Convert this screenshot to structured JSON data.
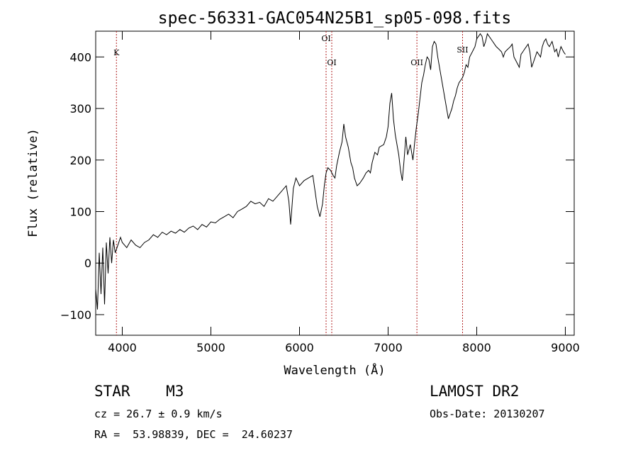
{
  "chart_data": {
    "type": "line",
    "title": "spec-56331-GAC054N25B1_sp05-098.fits",
    "xlabel": "Wavelength (Å)",
    "ylabel": "Flux (relative)",
    "xlim": [
      3700,
      9100
    ],
    "ylim": [
      -140,
      450
    ],
    "xticks": [
      4000,
      5000,
      6000,
      7000,
      8000,
      9000
    ],
    "yticks": [
      -100,
      0,
      100,
      200,
      300,
      400
    ],
    "grid": false,
    "series": [
      {
        "x": [
          3700,
          3720,
          3740,
          3760,
          3780,
          3800,
          3820,
          3840,
          3860,
          3880,
          3900,
          3920,
          3950,
          3980,
          4000,
          4050,
          4100,
          4150,
          4200,
          4250,
          4300,
          4350,
          4400,
          4450,
          4500,
          4550,
          4600,
          4650,
          4700,
          4750,
          4800,
          4850,
          4900,
          4950,
          5000,
          5050,
          5100,
          5150,
          5200,
          5250,
          5300,
          5350,
          5400,
          5450,
          5500,
          5550,
          5600,
          5650,
          5700,
          5750,
          5800,
          5850,
          5880,
          5900,
          5930,
          5960,
          6000,
          6050,
          6100,
          6150,
          6200,
          6230,
          6260,
          6280,
          6300,
          6320,
          6350,
          6380,
          6400,
          6420,
          6450,
          6480,
          6500,
          6520,
          6550,
          6580,
          6600,
          6620,
          6650,
          6680,
          6700,
          6720,
          6750,
          6780,
          6800,
          6820,
          6850,
          6880,
          6900,
          6950,
          6980,
          7000,
          7020,
          7040,
          7060,
          7080,
          7100,
          7120,
          7140,
          7160,
          7180,
          7200,
          7220,
          7250,
          7280,
          7300,
          7320,
          7340,
          7360,
          7380,
          7400,
          7420,
          7440,
          7460,
          7480,
          7500,
          7520,
          7540,
          7560,
          7580,
          7600,
          7620,
          7640,
          7660,
          7680,
          7700,
          7720,
          7740,
          7760,
          7780,
          7800,
          7820,
          7840,
          7860,
          7880,
          7900,
          7920,
          7950,
          7980,
          8000,
          8020,
          8040,
          8060,
          8080,
          8100,
          8120,
          8140,
          8160,
          8180,
          8200,
          8220,
          8250,
          8280,
          8300,
          8320,
          8350,
          8380,
          8400,
          8420,
          8450,
          8480,
          8500,
          8520,
          8540,
          8560,
          8580,
          8600,
          8620,
          8650,
          8680,
          8700,
          8720,
          8740,
          8760,
          8780,
          8800,
          8820,
          8850,
          8880,
          8900,
          8920,
          8950,
          8980,
          9000
        ],
        "y": [
          -50,
          -90,
          20,
          -60,
          30,
          -80,
          40,
          -20,
          50,
          0,
          45,
          20,
          35,
          50,
          40,
          30,
          45,
          35,
          30,
          40,
          45,
          55,
          50,
          60,
          55,
          62,
          58,
          65,
          60,
          68,
          72,
          65,
          75,
          70,
          80,
          78,
          85,
          90,
          95,
          88,
          100,
          105,
          110,
          120,
          115,
          118,
          110,
          125,
          120,
          130,
          140,
          150,
          120,
          75,
          145,
          165,
          150,
          160,
          165,
          170,
          110,
          90,
          115,
          150,
          175,
          185,
          180,
          170,
          165,
          190,
          215,
          235,
          270,
          245,
          225,
          195,
          185,
          165,
          150,
          155,
          160,
          165,
          175,
          180,
          175,
          195,
          215,
          210,
          225,
          230,
          245,
          265,
          310,
          330,
          280,
          250,
          230,
          210,
          180,
          160,
          200,
          245,
          210,
          230,
          200,
          235,
          265,
          290,
          320,
          350,
          365,
          385,
          400,
          395,
          375,
          420,
          430,
          425,
          400,
          380,
          360,
          340,
          320,
          300,
          280,
          290,
          300,
          315,
          325,
          340,
          350,
          355,
          360,
          370,
          385,
          380,
          400,
          410,
          420,
          435,
          440,
          445,
          440,
          420,
          430,
          445,
          440,
          435,
          430,
          425,
          420,
          415,
          410,
          400,
          410,
          415,
          420,
          425,
          400,
          390,
          380,
          405,
          410,
          415,
          420,
          425,
          410,
          380,
          395,
          410,
          405,
          400,
          420,
          430,
          435,
          425,
          420,
          430,
          410,
          415,
          400,
          420,
          410,
          405
        ]
      }
    ],
    "lines": [
      {
        "label": "K",
        "x": 3934
      },
      {
        "label": "OI",
        "x": 6300
      },
      {
        "label": "OI",
        "x": 6364
      },
      {
        "label": "OII",
        "x": 7325
      },
      {
        "label": "SII",
        "x": 7840
      }
    ],
    "line_color": "#b02020"
  },
  "info": {
    "class_line": "STAR    M3",
    "cz_line": "cz = 26.7 ± 0.9 km/s",
    "coord_line": "RA =  53.98839, DEC =  24.60237",
    "survey_line": "LAMOST DR2",
    "obsdate_line": "Obs-Date: 20130207"
  }
}
